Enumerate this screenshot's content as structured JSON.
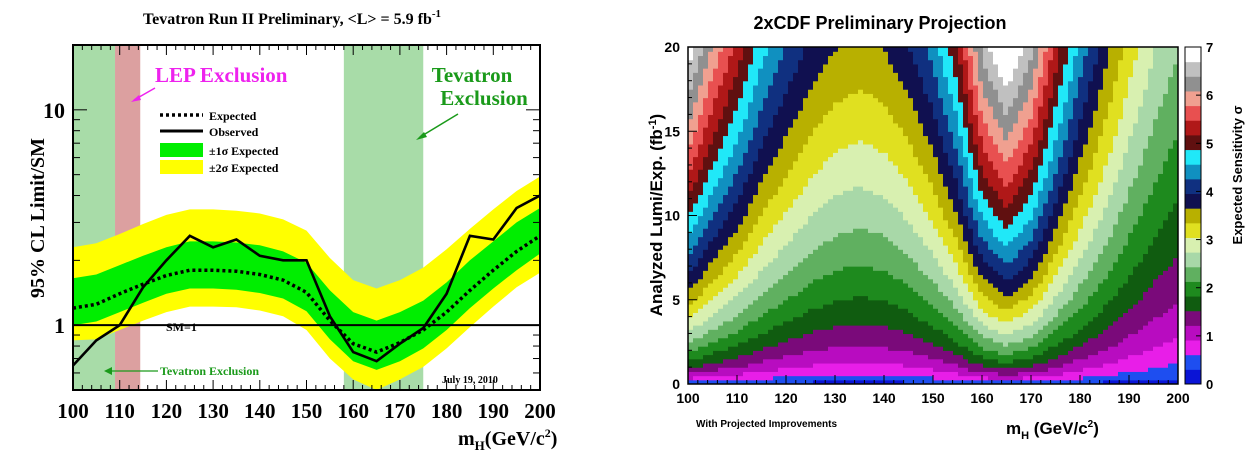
{
  "colors": {
    "expected_line": "#000000",
    "observed_line": "#000000",
    "band_1sigma": "#00ee00",
    "band_2sigma": "#ffff00",
    "lep_shade": "#dca0a0",
    "tevatron_shade": "#a8dca8",
    "lep_text": "#ee22ee",
    "tevatron_text": "#1a9a1a",
    "plot_frame": "#000000"
  },
  "chart_data": [
    {
      "type": "line",
      "title": "Tevatron Run II Preliminary, <L> = 5.9 fb",
      "title_sup": "-1",
      "xlabel": "m",
      "xlabel_sub": "H",
      "xlabel_unit": "(GeV/c",
      "xlabel_unit_sup": "2",
      "xlabel_close": ")",
      "ylabel": "95% CL Limit/SM",
      "xlim": [
        100,
        200
      ],
      "ylim": [
        0.5,
        20
      ],
      "yscale": "log",
      "x_ticks": [
        "100",
        "110",
        "120",
        "130",
        "140",
        "150",
        "160",
        "170",
        "180",
        "190",
        "200"
      ],
      "y_ticks": [
        "1",
        "10"
      ],
      "x": [
        100,
        105,
        110,
        115,
        120,
        125,
        130,
        135,
        140,
        145,
        150,
        155,
        160,
        165,
        170,
        175,
        180,
        185,
        190,
        195,
        200
      ],
      "series": [
        {
          "name": "Expected",
          "style": "dotted",
          "values": [
            1.2,
            1.25,
            1.4,
            1.55,
            1.7,
            1.8,
            1.8,
            1.78,
            1.72,
            1.62,
            1.42,
            1.05,
            0.82,
            0.75,
            0.83,
            0.95,
            1.15,
            1.45,
            1.8,
            2.2,
            2.6
          ]
        },
        {
          "name": "Observed",
          "style": "solid",
          "values": [
            0.65,
            0.85,
            1.0,
            1.5,
            2.0,
            2.6,
            2.3,
            2.5,
            2.1,
            2.0,
            2.0,
            1.1,
            0.75,
            0.68,
            0.82,
            0.97,
            1.4,
            2.6,
            2.5,
            3.5,
            4.0
          ]
        }
      ],
      "bands": [
        {
          "name": "±2σ Expected",
          "lower": [
            0.85,
            0.86,
            0.95,
            1.05,
            1.15,
            1.22,
            1.22,
            1.21,
            1.17,
            1.1,
            0.95,
            0.7,
            0.56,
            0.5,
            0.56,
            0.64,
            0.78,
            0.98,
            1.22,
            1.5,
            1.75
          ],
          "upper": [
            2.3,
            2.4,
            2.65,
            2.95,
            3.25,
            3.45,
            3.45,
            3.4,
            3.3,
            3.1,
            2.75,
            2.05,
            1.62,
            1.48,
            1.62,
            1.85,
            2.25,
            2.8,
            3.45,
            4.2,
            4.9
          ]
        },
        {
          "name": "±1σ Expected",
          "lower": [
            1.0,
            1.04,
            1.15,
            1.27,
            1.4,
            1.48,
            1.48,
            1.46,
            1.41,
            1.33,
            1.16,
            0.86,
            0.68,
            0.62,
            0.68,
            0.78,
            0.95,
            1.2,
            1.48,
            1.8,
            2.15
          ],
          "upper": [
            1.65,
            1.72,
            1.9,
            2.1,
            2.3,
            2.45,
            2.45,
            2.42,
            2.35,
            2.2,
            1.95,
            1.45,
            1.15,
            1.05,
            1.15,
            1.3,
            1.58,
            2.0,
            2.45,
            3.0,
            3.5
          ]
        }
      ],
      "exclusion_regions": [
        {
          "name": "Tevatron Exclusion",
          "range": [
            100,
            109
          ]
        },
        {
          "name": "LEP Exclusion",
          "range": [
            109,
            114.4
          ]
        },
        {
          "name": "Tevatron Exclusion",
          "range": [
            158,
            175
          ]
        }
      ],
      "reference_line": {
        "y": 1,
        "label": "SM=1"
      },
      "annotations": {
        "lep": "LEP Exclusion",
        "tevatron_line1": "Tevatron",
        "tevatron_line2": "Exclusion",
        "tevatron_bottom": "Tevatron Exclusion",
        "date": "July 19, 2010"
      },
      "legend": [
        {
          "label": "Expected",
          "style": "dotted"
        },
        {
          "label": "Observed",
          "style": "solid"
        },
        {
          "label": "±1σ Expected",
          "style": "band1"
        },
        {
          "label": "±2σ Expected",
          "style": "band2"
        }
      ],
      "legend_position": "upper-left"
    },
    {
      "type": "heatmap",
      "title": "2xCDF Preliminary Projection",
      "xlabel": "m",
      "xlabel_sub": "H",
      "xlabel_unit": " (GeV/c",
      "xlabel_unit_sup": "2",
      "xlabel_close": ")",
      "ylabel": "Analyzed Lumi/Exp. (fb",
      "ylabel_sup": "-1",
      "ylabel_close": ")",
      "xlim": [
        100,
        200
      ],
      "ylim": [
        0,
        20
      ],
      "x_ticks": [
        "100",
        "110",
        "120",
        "130",
        "140",
        "150",
        "160",
        "170",
        "180",
        "190",
        "200"
      ],
      "y_ticks": [
        "0",
        "5",
        "10",
        "15",
        "20"
      ],
      "colorbar_label": "Expected Sensitivity σ",
      "colorbar_range": [
        0,
        7
      ],
      "colorbar_ticks": [
        "0",
        "1",
        "2",
        "3",
        "4",
        "5",
        "6",
        "7"
      ],
      "footnote": "With Projected Improvements",
      "x": [
        100,
        105,
        110,
        115,
        120,
        125,
        130,
        135,
        140,
        145,
        150,
        155,
        160,
        165,
        170,
        175,
        180,
        185,
        190,
        195,
        200
      ],
      "sensitivity_per_sqrt_fb": [
        1.55,
        1.35,
        1.2,
        1.05,
        0.95,
        0.87,
        0.82,
        0.8,
        0.82,
        0.88,
        0.98,
        1.15,
        1.45,
        1.6,
        1.45,
        1.2,
        1.0,
        0.85,
        0.72,
        0.62,
        0.55
      ]
    }
  ]
}
